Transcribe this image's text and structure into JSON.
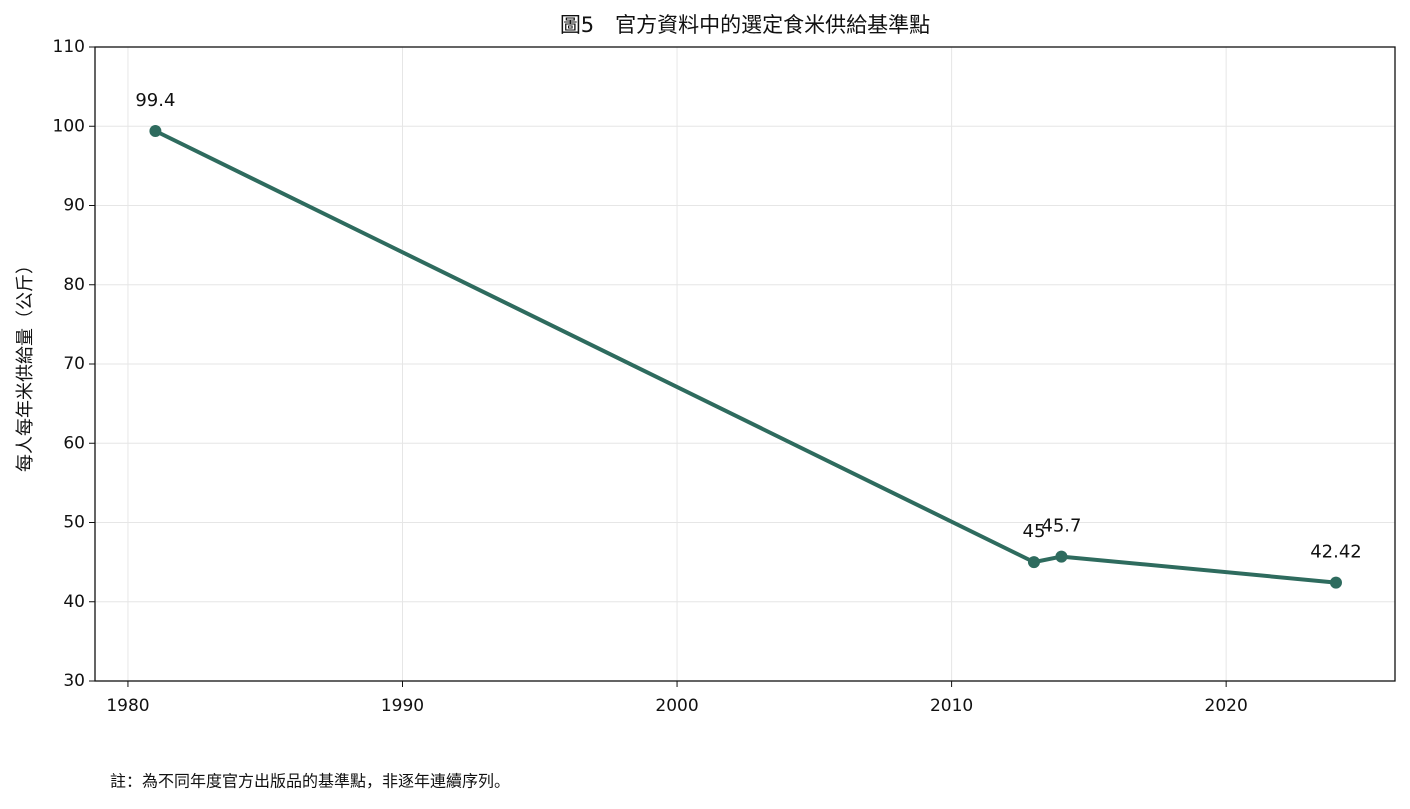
{
  "chart_data": {
    "type": "line",
    "title": "圖5　官方資料中的選定食米供給基準點",
    "y_label": "每人每年米供給量（公斤）",
    "note": "註：為不同年度官方出版品的基準點，非逐年連續序列。",
    "x": [
      1981,
      2013,
      2014,
      2024
    ],
    "series": [
      {
        "name": "每人每年米供給量",
        "color": "#2e6b5e",
        "values": [
          99.4,
          45,
          45.7,
          42.42
        ]
      }
    ],
    "xlim": [
      1978.8,
      2026.15
    ],
    "xticks": [
      1980,
      1990,
      2000,
      2010,
      2020
    ],
    "ylim": [
      30,
      110
    ],
    "yticks": [
      30,
      40,
      50,
      60,
      70,
      80,
      90,
      100,
      110
    ],
    "grid": true
  }
}
